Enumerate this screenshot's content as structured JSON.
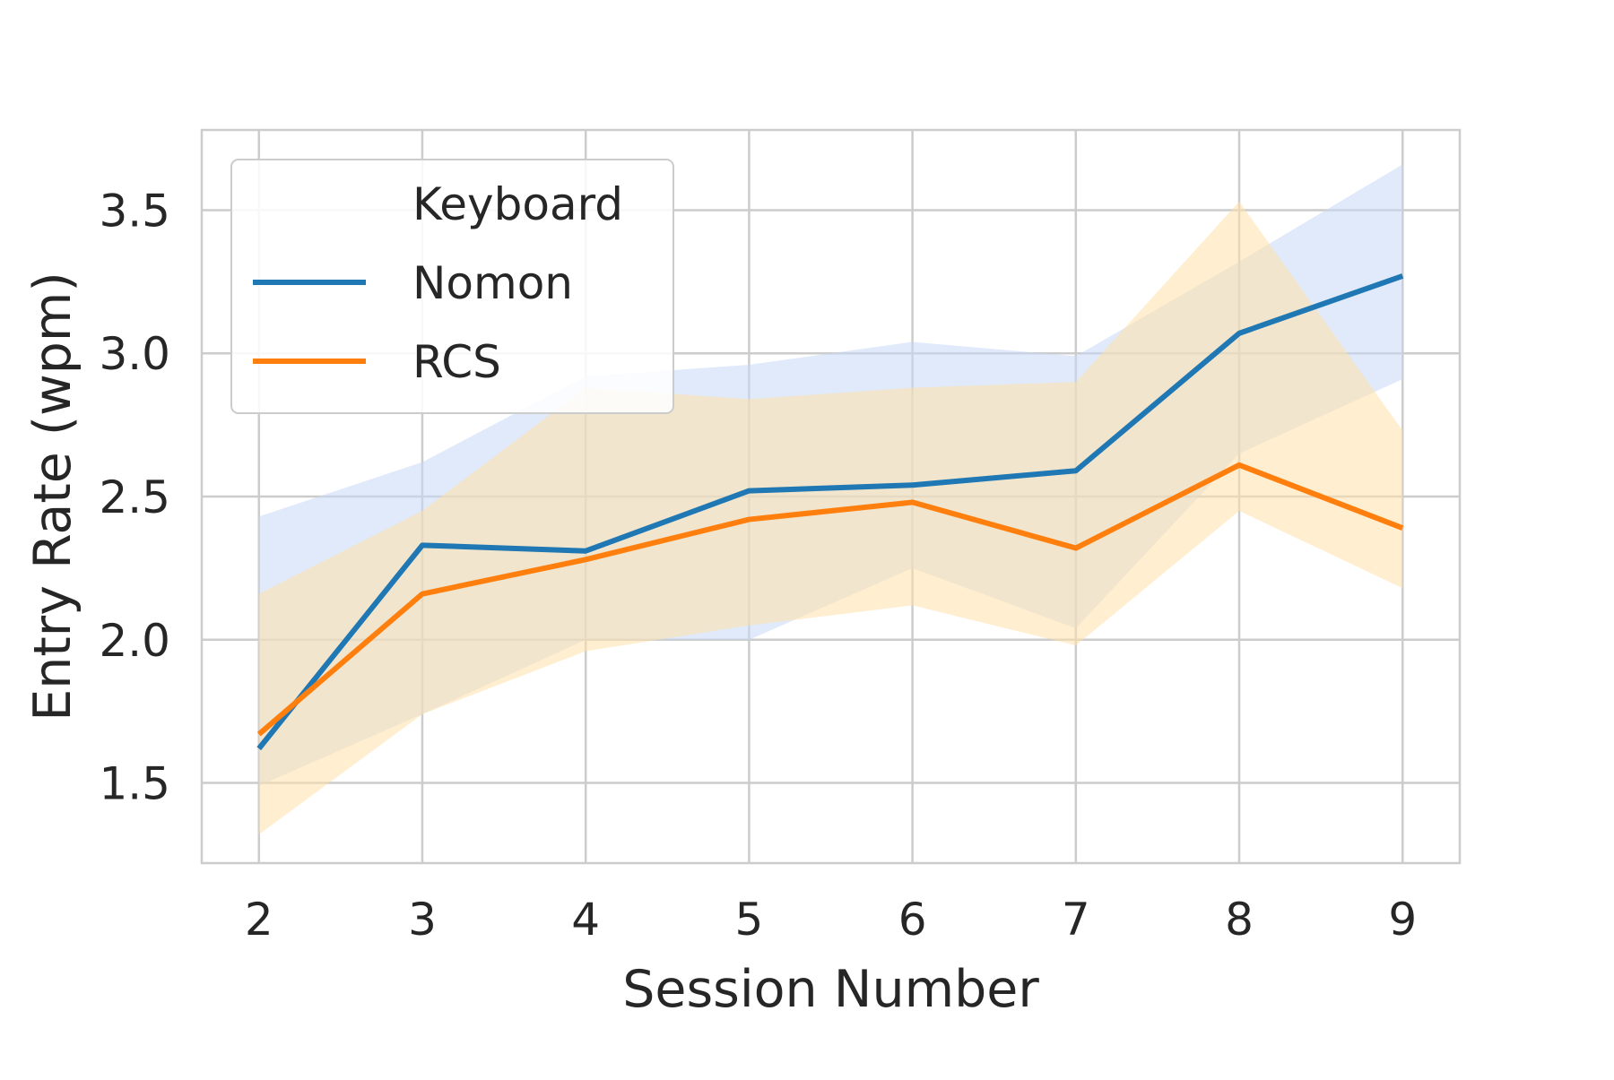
{
  "chart_data": {
    "type": "line",
    "xlabel": "Session Number",
    "ylabel": "Entry Rate (wpm)",
    "x": [
      2,
      3,
      4,
      5,
      6,
      7,
      8,
      9
    ],
    "xlim": [
      1.65,
      9.35
    ],
    "ylim": [
      1.22,
      3.78
    ],
    "xticks": [
      2,
      3,
      4,
      5,
      6,
      7,
      8,
      9
    ],
    "yticks": [
      1.5,
      2.0,
      2.5,
      3.0,
      3.5
    ],
    "ytick_labels": [
      "1.5",
      "2.0",
      "2.5",
      "3.0",
      "3.5"
    ],
    "grid": true,
    "legend": {
      "title": "Keyboard",
      "position": "top-left"
    },
    "series": [
      {
        "name": "Nomon",
        "color": "#1f77b4",
        "band_color": "#c7d8f5",
        "values": [
          1.62,
          2.33,
          2.31,
          2.52,
          2.54,
          2.59,
          3.07,
          3.27
        ],
        "ci_lower": [
          1.49,
          1.74,
          2.0,
          2.0,
          2.25,
          2.04,
          2.65,
          2.91
        ],
        "ci_upper": [
          2.43,
          2.62,
          2.92,
          2.96,
          3.04,
          2.99,
          3.32,
          3.66
        ]
      },
      {
        "name": "RCS",
        "color": "#ff7f0e",
        "band_color": "#ffe0a8",
        "values": [
          1.67,
          2.16,
          2.28,
          2.42,
          2.48,
          2.32,
          2.61,
          2.39
        ],
        "ci_lower": [
          1.32,
          1.74,
          1.96,
          2.05,
          2.12,
          1.98,
          2.45,
          2.18
        ],
        "ci_upper": [
          2.16,
          2.45,
          2.88,
          2.84,
          2.88,
          2.9,
          3.53,
          2.73
        ]
      }
    ]
  }
}
